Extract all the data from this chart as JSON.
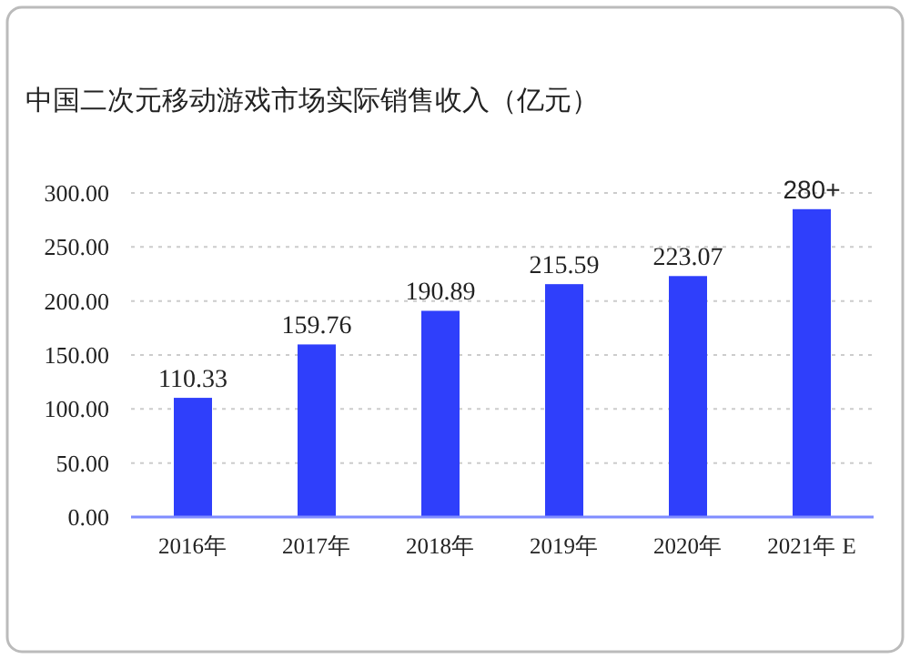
{
  "chart_data": {
    "type": "bar",
    "title": "中国二次元移动游戏市场实际销售收入（亿元）",
    "categories": [
      "2016年",
      "2017年",
      "2018年",
      "2019年",
      "2020年",
      "2021年 E"
    ],
    "values": [
      110.33,
      159.76,
      190.89,
      215.59,
      223.07,
      285
    ],
    "value_labels": [
      "110.33",
      "159.76",
      "190.89",
      "215.59",
      "223.07",
      "280+"
    ],
    "color": "#2f3ffb",
    "ylim": [
      0,
      300
    ],
    "yticks": [
      {
        "value": 0,
        "label": "0.00"
      },
      {
        "value": 50,
        "label": "50.00"
      },
      {
        "value": 100,
        "label": "100.00"
      },
      {
        "value": 150,
        "label": "150.00"
      },
      {
        "value": 200,
        "label": "200.00"
      },
      {
        "value": 250,
        "label": "250.00"
      },
      {
        "value": 300,
        "label": "300.00"
      }
    ],
    "grid": "y"
  }
}
